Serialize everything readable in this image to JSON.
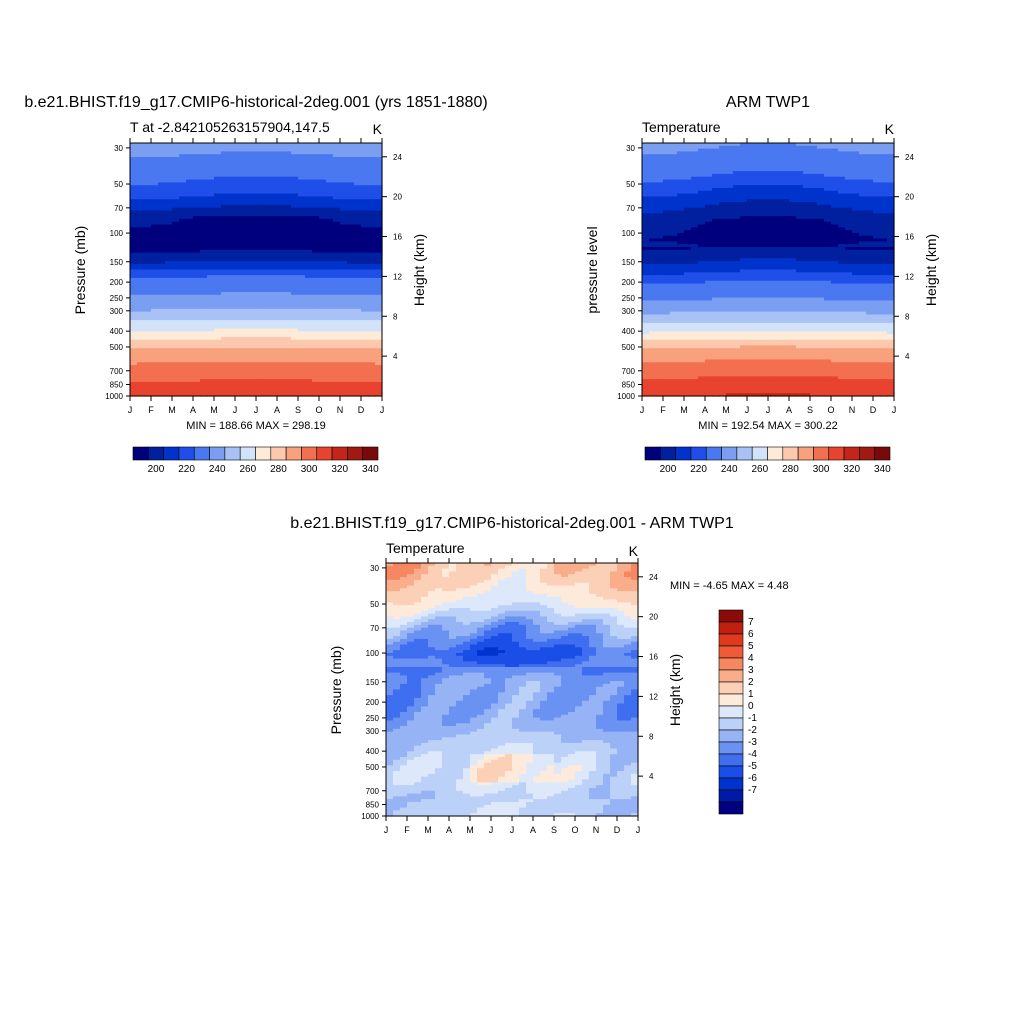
{
  "colors": {
    "absolute_levels": [
      "#00007f",
      "#0020a0",
      "#0033cc",
      "#1f4fe8",
      "#4a78f0",
      "#7a9ef2",
      "#a8c2f6",
      "#d2e3f9",
      "#fdebd8",
      "#fcc9ae",
      "#f9a07d",
      "#f2704f",
      "#e8432f",
      "#c52518",
      "#a11a12",
      "#7a0a0a"
    ],
    "difference_levels": [
      "#000080",
      "#0019a6",
      "#0033cc",
      "#1a4ee6",
      "#3f6ef0",
      "#6a92f2",
      "#96b4f5",
      "#bcd1f8",
      "#dde9fb",
      "#fdeadb",
      "#fcd0b6",
      "#f9ad8b",
      "#f58761",
      "#ef5b38",
      "#e03a1e",
      "#c0200f",
      "#8b0a0a"
    ]
  },
  "chart_data": [
    {
      "type": "heatmap",
      "title": "b.e21.BHIST.f19_g17.CMIP6-historical-2deg.001 (yrs 1851-1880)",
      "subtitle_left": "T at -2.842105263157904,147.5",
      "subtitle_right": "K",
      "ylabel": "Pressure (mb)",
      "ylabel_right": "Height (km)",
      "x_ticks": [
        "J",
        "F",
        "M",
        "A",
        "M",
        "J",
        "J",
        "A",
        "S",
        "O",
        "N",
        "D",
        "J"
      ],
      "pressure_ticks": [
        "30",
        "50",
        "70",
        "100",
        "150",
        "200",
        "250",
        "300",
        "400",
        "500",
        "700",
        "850",
        "1000"
      ],
      "pressure_values": [
        30,
        50,
        70,
        100,
        150,
        200,
        250,
        300,
        400,
        500,
        700,
        850,
        1000
      ],
      "height_ticks": [
        "24",
        "20",
        "16",
        "12",
        "8",
        "4"
      ],
      "height_values": [
        24,
        20,
        16,
        12,
        8,
        4
      ],
      "stats": "MIN = 188.66 MAX = 298.19",
      "colorbar": {
        "orientation": "horizontal",
        "levels": [
          195,
          200,
          205,
          210,
          220,
          230,
          240,
          250,
          260,
          270,
          280,
          290,
          300,
          310,
          320,
          330,
          340
        ],
        "labels": [
          "200",
          "220",
          "240",
          "260",
          "280",
          "300",
          "320",
          "340"
        ]
      },
      "profile": [
        [
          28,
          225
        ],
        [
          35,
          218
        ],
        [
          45,
          211
        ],
        [
          60,
          205
        ],
        [
          80,
          195
        ],
        [
          110,
          192
        ],
        [
          130,
          195
        ],
        [
          150,
          200
        ],
        [
          180,
          209
        ],
        [
          210,
          214
        ],
        [
          250,
          223
        ],
        [
          300,
          231
        ],
        [
          380,
          247
        ],
        [
          460,
          263
        ],
        [
          520,
          272
        ],
        [
          620,
          280
        ],
        [
          750,
          287
        ],
        [
          880,
          294
        ],
        [
          1000,
          298
        ]
      ],
      "seasonal_amplitude": 1.2,
      "seasonal_center_month": 7
    },
    {
      "type": "heatmap",
      "title": "ARM TWP1",
      "subtitle_left": "Temperature",
      "subtitle_right": "K",
      "ylabel": "pressure level",
      "ylabel_right": "Height (km)",
      "x_ticks": [
        "J",
        "F",
        "M",
        "A",
        "M",
        "J",
        "J",
        "A",
        "S",
        "O",
        "N",
        "D",
        "J"
      ],
      "pressure_ticks": [
        "30",
        "50",
        "70",
        "100",
        "150",
        "200",
        "250",
        "300",
        "400",
        "500",
        "700",
        "850",
        "1000"
      ],
      "pressure_values": [
        30,
        50,
        70,
        100,
        150,
        200,
        250,
        300,
        400,
        500,
        700,
        850,
        1000
      ],
      "height_ticks": [
        "24",
        "20",
        "16",
        "12",
        "8",
        "4"
      ],
      "height_values": [
        24,
        20,
        16,
        12,
        8,
        4
      ],
      "stats": "MIN = 192.54 MAX = 300.22",
      "colorbar": {
        "orientation": "horizontal",
        "levels": [
          195,
          200,
          205,
          210,
          220,
          230,
          240,
          250,
          260,
          270,
          280,
          290,
          300,
          310,
          320,
          330,
          340
        ],
        "labels": [
          "200",
          "220",
          "240",
          "260",
          "280",
          "300",
          "320",
          "340"
        ]
      },
      "profile": [
        [
          28,
          222
        ],
        [
          38,
          214
        ],
        [
          50,
          207
        ],
        [
          65,
          201
        ],
        [
          85,
          195
        ],
        [
          110,
          193
        ],
        [
          140,
          198
        ],
        [
          165,
          203
        ],
        [
          200,
          210
        ],
        [
          250,
          219
        ],
        [
          300,
          229
        ],
        [
          380,
          245
        ],
        [
          460,
          262
        ],
        [
          520,
          273
        ],
        [
          620,
          281
        ],
        [
          750,
          289
        ],
        [
          880,
          296
        ],
        [
          1000,
          300
        ]
      ],
      "seasonal_amplitude": 2.0,
      "seasonal_center_month": 7
    },
    {
      "type": "heatmap",
      "title": "b.e21.BHIST.f19_g17.CMIP6-historical-2deg.001 - ARM TWP1",
      "subtitle_left": "Temperature",
      "subtitle_right": "K",
      "ylabel": "Pressure (mb)",
      "ylabel_right": "Height (km)",
      "x_ticks": [
        "J",
        "F",
        "M",
        "A",
        "M",
        "J",
        "J",
        "A",
        "S",
        "O",
        "N",
        "D",
        "J"
      ],
      "pressure_ticks": [
        "30",
        "50",
        "70",
        "100",
        "150",
        "200",
        "250",
        "300",
        "400",
        "500",
        "700",
        "850",
        "1000"
      ],
      "pressure_values": [
        30,
        50,
        70,
        100,
        150,
        200,
        250,
        300,
        400,
        500,
        700,
        850,
        1000
      ],
      "height_ticks": [
        "24",
        "20",
        "16",
        "12",
        "8",
        "4"
      ],
      "height_values": [
        24,
        20,
        16,
        12,
        8,
        4
      ],
      "stats": "MIN =  -4.65 MAX =   4.48",
      "colorbar": {
        "orientation": "vertical",
        "levels": [
          -7,
          -6,
          -5,
          -4,
          -3,
          -2,
          -1,
          0,
          1,
          2,
          3,
          4,
          5,
          6,
          7
        ],
        "labels": [
          "7",
          "6",
          "5",
          "4",
          "3",
          "2",
          "1",
          "0",
          "-1",
          "-2",
          "-3",
          "-4",
          "-5",
          "-6",
          "-7"
        ]
      },
      "profile": [
        [
          28,
          3.0
        ],
        [
          38,
          2.2
        ],
        [
          50,
          1.0
        ],
        [
          60,
          -0.5
        ],
        [
          70,
          -1.8
        ],
        [
          85,
          -3.0
        ],
        [
          100,
          -4.0
        ],
        [
          115,
          -3.2
        ],
        [
          150,
          -2.0
        ],
        [
          200,
          -2.3
        ],
        [
          260,
          -1.9
        ],
        [
          320,
          -1.2
        ],
        [
          400,
          -0.4
        ],
        [
          500,
          0.3
        ],
        [
          600,
          0.2
        ],
        [
          750,
          -0.6
        ],
        [
          880,
          -0.5
        ],
        [
          1000,
          -0.4
        ]
      ],
      "seasonal_amplitude": 1.0,
      "seasonal_center_month": 7
    }
  ]
}
